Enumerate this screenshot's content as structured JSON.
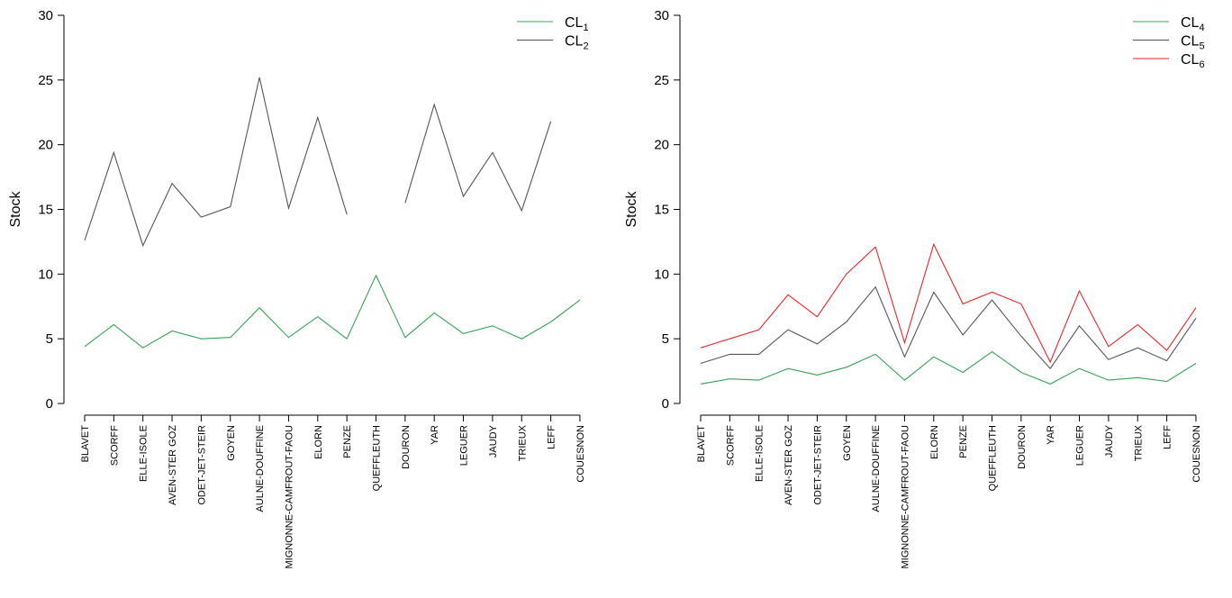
{
  "chart_data": [
    {
      "type": "line",
      "ylabel": "Stock",
      "xlabel": "",
      "ylim": [
        0,
        30
      ],
      "yticks": [
        0,
        5,
        10,
        15,
        20,
        25,
        30
      ],
      "categories": [
        "BLAVET",
        "SCORFF",
        "ELLE-ISOLE",
        "AVEN-STER GOZ",
        "ODET-JET-STEIR",
        "GOYEN",
        "AULNE-DOUFFINE",
        "MIGNONNE-CAMFROUT-FAOU",
        "ELORN",
        "PENZE",
        "QUEFFLEUTH",
        "DOURON",
        "YAR",
        "LEGUER",
        "JAUDY",
        "TRIEUX",
        "LEFF",
        "COUESNON"
      ],
      "legend_position": "top-right",
      "series": [
        {
          "name": "CL",
          "sub": "1",
          "color": "#33a454",
          "values": [
            4.4,
            6.1,
            4.3,
            5.6,
            5.0,
            5.1,
            7.4,
            5.1,
            6.7,
            5.0,
            9.9,
            5.1,
            7.0,
            5.4,
            6.0,
            5.0,
            6.3,
            8.0
          ]
        },
        {
          "name": "CL",
          "sub": "2",
          "color": "#555555",
          "values": [
            12.6,
            19.4,
            12.2,
            17.0,
            14.4,
            15.2,
            25.2,
            15.1,
            22.1,
            14.6,
            null,
            15.5,
            23.1,
            16.0,
            19.4,
            14.9,
            21.8,
            null
          ]
        }
      ]
    },
    {
      "type": "line",
      "ylabel": "Stock",
      "xlabel": "",
      "ylim": [
        0,
        30
      ],
      "yticks": [
        0,
        5,
        10,
        15,
        20,
        25,
        30
      ],
      "categories": [
        "BLAVET",
        "SCORFF",
        "ELLE-ISOLE",
        "AVEN-STER GOZ",
        "ODET-JET-STEIR",
        "GOYEN",
        "AULNE-DOUFFINE",
        "MIGNONNE-CAMFROUT-FAOU",
        "ELORN",
        "PENZE",
        "QUEFFLEUTH",
        "DOURON",
        "YAR",
        "LEGUER",
        "JAUDY",
        "TRIEUX",
        "LEFF",
        "COUESNON"
      ],
      "legend_position": "top-right",
      "series": [
        {
          "name": "CL",
          "sub": "4",
          "color": "#33a454",
          "values": [
            1.5,
            1.9,
            1.8,
            2.7,
            2.2,
            2.8,
            3.8,
            1.8,
            3.6,
            2.4,
            4.0,
            2.4,
            1.5,
            2.7,
            1.8,
            2.0,
            1.7,
            3.1
          ]
        },
        {
          "name": "CL",
          "sub": "5",
          "color": "#555555",
          "values": [
            3.1,
            3.8,
            3.8,
            5.7,
            4.6,
            6.3,
            9.0,
            3.6,
            8.6,
            5.3,
            8.0,
            5.2,
            2.7,
            6.0,
            3.4,
            4.3,
            3.3,
            6.6
          ]
        },
        {
          "name": "CL",
          "sub": "6",
          "color": "#e8262a",
          "values": [
            4.3,
            5.0,
            5.7,
            8.4,
            6.7,
            10.0,
            12.1,
            4.7,
            12.3,
            7.7,
            8.6,
            7.7,
            3.2,
            8.7,
            4.4,
            6.1,
            4.1,
            7.4
          ]
        }
      ]
    }
  ]
}
